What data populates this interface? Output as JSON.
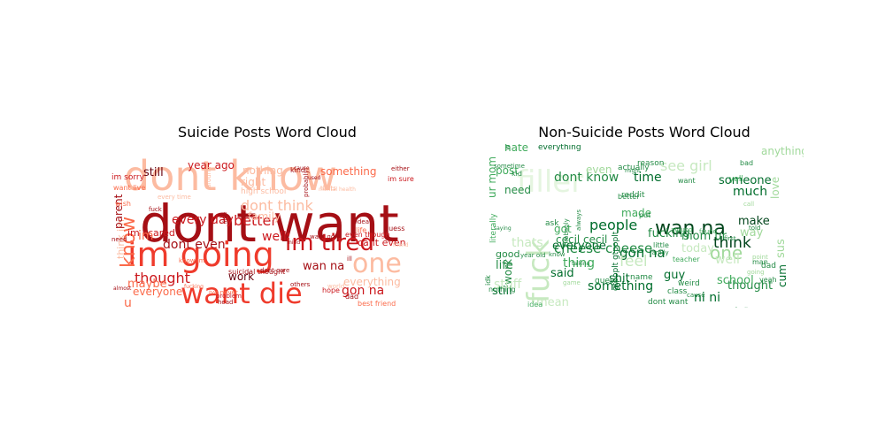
{
  "chart_data": [
    {
      "type": "wordcloud",
      "title": "Suicide Posts Word Cloud",
      "palette": "reds",
      "colors": [
        "#fee0d2",
        "#fcbba1",
        "#fc9272",
        "#fb6a4a",
        "#ef3b2c",
        "#cb181d",
        "#a50f15",
        "#67000d"
      ],
      "words": [
        {
          "text": "dont want",
          "weight": 1.0,
          "color": "#a50f15"
        },
        {
          "text": "dont know",
          "weight": 0.95,
          "color": "#fcbba1"
        },
        {
          "text": "im going",
          "weight": 0.7,
          "color": "#ef3b2c"
        },
        {
          "text": "want die",
          "weight": 0.65,
          "color": "#ef3b2c"
        },
        {
          "text": "im tired",
          "weight": 0.55,
          "color": "#cb181d"
        },
        {
          "text": "one",
          "weight": 0.5,
          "color": "#fcbba1"
        },
        {
          "text": "know",
          "weight": 0.45,
          "color": "#fb6a4a"
        },
        {
          "text": "dont think",
          "weight": 0.38,
          "color": "#fcbba1"
        },
        {
          "text": "thought",
          "weight": 0.33,
          "color": "#cb181d"
        },
        {
          "text": "every day",
          "weight": 0.3,
          "color": "#cb181d"
        },
        {
          "text": "better",
          "weight": 0.3,
          "color": "#cb181d"
        },
        {
          "text": "dont even",
          "weight": 0.28,
          "color": "#a50f15"
        },
        {
          "text": "wan na",
          "weight": 0.27,
          "color": "#a50f15"
        },
        {
          "text": "gon na",
          "weight": 0.27,
          "color": "#cb181d"
        },
        {
          "text": "well",
          "weight": 0.27,
          "color": "#cb181d"
        },
        {
          "text": "family",
          "weight": 0.26,
          "color": "#fcbba1"
        },
        {
          "text": "everything",
          "weight": 0.25,
          "color": "#fcbba1"
        },
        {
          "text": "nothing",
          "weight": 0.24,
          "color": "#fcbba1"
        },
        {
          "text": "something",
          "weight": 0.24,
          "color": "#fb6a4a"
        },
        {
          "text": "still",
          "weight": 0.24,
          "color": "#67000d"
        },
        {
          "text": "maybe",
          "weight": 0.22,
          "color": "#fb6a4a"
        },
        {
          "text": "right",
          "weight": 0.22,
          "color": "#fcbba1"
        },
        {
          "text": "work",
          "weight": 0.22,
          "color": "#67000d"
        },
        {
          "text": "year ago",
          "weight": 0.2,
          "color": "#cb181d"
        },
        {
          "text": "think im",
          "weight": 0.2,
          "color": "#fcbba1"
        },
        {
          "text": "parent",
          "weight": 0.2,
          "color": "#a50f15"
        },
        {
          "text": "im scared",
          "weight": 0.18,
          "color": "#cb181d"
        },
        {
          "text": "everyone",
          "weight": 0.18,
          "color": "#fb6a4a"
        },
        {
          "text": "cant even",
          "weight": 0.18,
          "color": "#cb181d"
        },
        {
          "text": "im sorry",
          "weight": 0.16,
          "color": "#cb181d"
        },
        {
          "text": "high school",
          "weight": 0.15,
          "color": "#fcbba1"
        },
        {
          "text": "suicidal thought",
          "weight": 0.14,
          "color": "#a50f15"
        },
        {
          "text": "best friend",
          "weight": 0.14,
          "color": "#fb6a4a"
        },
        {
          "text": "even though",
          "weight": 0.14,
          "color": "#cb181d"
        },
        {
          "text": "kind",
          "weight": 0.14,
          "color": "#a50f15"
        },
        {
          "text": "want live",
          "weight": 0.12,
          "color": "#fb6a4a"
        },
        {
          "text": "im sure",
          "weight": 0.12,
          "color": "#cb181d"
        },
        {
          "text": "fuck",
          "weight": 0.12,
          "color": "#a50f15"
        },
        {
          "text": "hope",
          "weight": 0.12,
          "color": "#cb181d"
        },
        {
          "text": "ive never",
          "weight": 0.12,
          "color": "#fb6a4a"
        },
        {
          "text": "want go",
          "weight": 0.12,
          "color": "#a50f15"
        },
        {
          "text": "problem",
          "weight": 0.1,
          "color": "#cb181d"
        },
        {
          "text": "dont care",
          "weight": 0.1,
          "color": "#a50f15"
        },
        {
          "text": "idea",
          "weight": 0.1,
          "color": "#a50f15"
        },
        {
          "text": "guess",
          "weight": 0.1,
          "color": "#a50f15"
        },
        {
          "text": "head",
          "weight": 0.1,
          "color": "#a50f15"
        },
        {
          "text": "others",
          "weight": 0.1,
          "color": "#a50f15"
        },
        {
          "text": "dad",
          "weight": 0.1,
          "color": "#a50f15"
        },
        {
          "text": "wish",
          "weight": 0.1,
          "color": "#fb6a4a"
        },
        {
          "text": "life",
          "weight": 0.1,
          "color": "#fb6a4a"
        },
        {
          "text": "probably",
          "weight": 0.09,
          "color": "#a50f15"
        },
        {
          "text": "either",
          "weight": 0.09,
          "color": "#a50f15"
        },
        {
          "text": "used",
          "weight": 0.09,
          "color": "#a50f15"
        },
        {
          "text": "cause",
          "weight": 0.09,
          "color": "#a50f15"
        },
        {
          "text": "thats",
          "weight": 0.09,
          "color": "#fcbba1"
        },
        {
          "text": "mind",
          "weight": 0.09,
          "color": "#a50f15"
        },
        {
          "text": "world",
          "weight": 0.09,
          "color": "#fcbba1"
        },
        {
          "text": "mental health",
          "weight": 0.08,
          "color": "#fcbba1"
        },
        {
          "text": "im",
          "weight": 0.2,
          "color": "#fb6a4a"
        },
        {
          "text": "u",
          "weight": 0.2,
          "color": "#fb6a4a"
        },
        {
          "text": "fucking",
          "weight": 0.08,
          "color": "#fb6a4a"
        },
        {
          "text": "almost",
          "weight": 0.08,
          "color": "#a50f15"
        },
        {
          "text": "every time",
          "weight": 0.08,
          "color": "#fcbba1"
        },
        {
          "text": "little",
          "weight": 0.08,
          "color": "#a50f15"
        },
        {
          "text": "ill",
          "weight": 0.08,
          "color": "#a50f15"
        },
        {
          "text": "know im",
          "weight": 0.08,
          "color": "#fb6a4a"
        },
        {
          "text": "around",
          "weight": 0.08,
          "color": "#fcbba1"
        },
        {
          "text": "friend",
          "weight": 0.08,
          "color": "#fcbba1"
        },
        {
          "text": "need",
          "weight": 0.08,
          "color": "#a50f15"
        }
      ]
    },
    {
      "type": "wordcloud",
      "title": "Non-Suicide Posts Word Cloud",
      "palette": "greens",
      "colors": [
        "#e5f5e0",
        "#c7e9c0",
        "#a1d99b",
        "#74c476",
        "#41ab5d",
        "#238b45",
        "#006d2c",
        "#00441b"
      ],
      "words": [
        {
          "text": "filler",
          "weight": 1.0,
          "color": "#e5f5e0"
        },
        {
          "text": "fuck",
          "weight": 0.6,
          "color": "#c7e9c0"
        },
        {
          "text": "wan na",
          "weight": 0.45,
          "color": "#00441b"
        },
        {
          "text": "people",
          "weight": 0.35,
          "color": "#006d2c"
        },
        {
          "text": "cheese cheese",
          "weight": 0.32,
          "color": "#238b45"
        },
        {
          "text": "one",
          "weight": 0.33,
          "color": "#a1d99b"
        },
        {
          "text": "think",
          "weight": 0.3,
          "color": "#00441b"
        },
        {
          "text": "dont know",
          "weight": 0.3,
          "color": "#238b45"
        },
        {
          "text": "gon na",
          "weight": 0.3,
          "color": "#006d2c"
        },
        {
          "text": "something",
          "weight": 0.28,
          "color": "#006d2c"
        },
        {
          "text": "feel",
          "weight": 0.28,
          "color": "#c7e9c0"
        },
        {
          "text": "see girl",
          "weight": 0.27,
          "color": "#c7e9c0"
        },
        {
          "text": "time",
          "weight": 0.26,
          "color": "#006d2c"
        },
        {
          "text": "much",
          "weight": 0.26,
          "color": "#006d2c"
        },
        {
          "text": "someone",
          "weight": 0.26,
          "color": "#006d2c"
        },
        {
          "text": "make",
          "weight": 0.26,
          "color": "#00441b"
        },
        {
          "text": "thing",
          "weight": 0.26,
          "color": "#41ab5d"
        },
        {
          "text": "everyone",
          "weight": 0.24,
          "color": "#006d2c"
        },
        {
          "text": "fucking",
          "weight": 0.24,
          "color": "#238b45"
        },
        {
          "text": "mom ur",
          "weight": 0.24,
          "color": "#238b45"
        },
        {
          "text": "guy",
          "weight": 0.24,
          "color": "#006d2c"
        },
        {
          "text": "said",
          "weight": 0.24,
          "color": "#006d2c"
        },
        {
          "text": "shit",
          "weight": 0.24,
          "color": "#006d2c"
        },
        {
          "text": "still",
          "weight": 0.24,
          "color": "#006d2c"
        },
        {
          "text": "life",
          "weight": 0.24,
          "color": "#238b45"
        },
        {
          "text": "good",
          "weight": 0.22,
          "color": "#238b45"
        },
        {
          "text": "work",
          "weight": 0.22,
          "color": "#238b45"
        },
        {
          "text": "need",
          "weight": 0.22,
          "color": "#238b45"
        },
        {
          "text": "post",
          "weight": 0.22,
          "color": "#41ab5d"
        },
        {
          "text": "hate",
          "weight": 0.22,
          "color": "#41ab5d"
        },
        {
          "text": "thought",
          "weight": 0.22,
          "color": "#238b45"
        },
        {
          "text": "school",
          "weight": 0.22,
          "color": "#41ab5d"
        },
        {
          "text": "ni ni",
          "weight": 0.22,
          "color": "#006d2c"
        },
        {
          "text": "cum",
          "weight": 0.2,
          "color": "#006d2c"
        },
        {
          "text": "sus",
          "weight": 0.2,
          "color": "#a1d99b"
        },
        {
          "text": "love",
          "weight": 0.2,
          "color": "#a1d99b"
        },
        {
          "text": "today",
          "weight": 0.2,
          "color": "#c7e9c0"
        },
        {
          "text": "anything",
          "weight": 0.2,
          "color": "#a1d99b"
        },
        {
          "text": "way",
          "weight": 0.2,
          "color": "#a1d99b"
        },
        {
          "text": "ur mom",
          "weight": 0.2,
          "color": "#41ab5d"
        },
        {
          "text": "made",
          "weight": 0.18,
          "color": "#41ab5d"
        },
        {
          "text": "cecil cecil",
          "weight": 0.16,
          "color": "#238b45"
        },
        {
          "text": "got",
          "weight": 0.18,
          "color": "#41ab5d"
        },
        {
          "text": "well",
          "weight": 0.18,
          "color": "#c7e9c0"
        },
        {
          "text": "mean",
          "weight": 0.16,
          "color": "#c7e9c0"
        },
        {
          "text": "even",
          "weight": 0.18,
          "color": "#a1d99b"
        },
        {
          "text": "everything",
          "weight": 0.12,
          "color": "#006d2c"
        },
        {
          "text": "actually",
          "weight": 0.12,
          "color": "#238b45"
        },
        {
          "text": "reason",
          "weight": 0.12,
          "color": "#238b45"
        },
        {
          "text": "yall",
          "weight": 0.12,
          "color": "#41ab5d"
        },
        {
          "text": "want",
          "weight": 0.12,
          "color": "#238b45"
        },
        {
          "text": "dont want",
          "weight": 0.1,
          "color": "#238b45"
        },
        {
          "text": "gtpoplt gtpoplt",
          "weight": 0.12,
          "color": "#006d2c"
        },
        {
          "text": "class",
          "weight": 0.12,
          "color": "#238b45"
        },
        {
          "text": "dad",
          "weight": 0.12,
          "color": "#238b45"
        },
        {
          "text": "weird",
          "weight": 0.12,
          "color": "#238b45"
        },
        {
          "text": "idea",
          "weight": 0.12,
          "color": "#41ab5d"
        },
        {
          "text": "name",
          "weight": 0.1,
          "color": "#238b45"
        },
        {
          "text": "better",
          "weight": 0.1,
          "color": "#238b45"
        },
        {
          "text": "ask",
          "weight": 0.1,
          "color": "#238b45"
        },
        {
          "text": "put",
          "weight": 0.1,
          "color": "#238b45"
        },
        {
          "text": "reddit",
          "weight": 0.1,
          "color": "#238b45"
        },
        {
          "text": "little",
          "weight": 0.1,
          "color": "#238b45"
        },
        {
          "text": "family",
          "weight": 0.09,
          "color": "#238b45"
        },
        {
          "text": "teacher",
          "weight": 0.09,
          "color": "#41ab5d"
        },
        {
          "text": "guess",
          "weight": 0.1,
          "color": "#238b45"
        },
        {
          "text": "first",
          "weight": 0.1,
          "color": "#238b45"
        },
        {
          "text": "told",
          "weight": 0.1,
          "color": "#238b45"
        },
        {
          "text": "man",
          "weight": 0.1,
          "color": "#238b45"
        },
        {
          "text": "feeling",
          "weight": 0.09,
          "color": "#238b45"
        },
        {
          "text": "cause",
          "weight": 0.1,
          "color": "#238b45"
        },
        {
          "text": "yeah",
          "weight": 0.09,
          "color": "#238b45"
        },
        {
          "text": "cant",
          "weight": 0.1,
          "color": "#238b45"
        },
        {
          "text": "literally",
          "weight": 0.12,
          "color": "#41ab5d"
        },
        {
          "text": "idk",
          "weight": 0.1,
          "color": "#238b45"
        },
        {
          "text": "nothing",
          "weight": 0.1,
          "color": "#238b45"
        },
        {
          "text": "probably",
          "weight": 0.09,
          "color": "#238b45"
        },
        {
          "text": "year old",
          "weight": 0.09,
          "color": "#238b45"
        },
        {
          "text": "always",
          "weight": 0.09,
          "color": "#238b45"
        },
        {
          "text": "call",
          "weight": 0.09,
          "color": "#a1d99b"
        },
        {
          "text": "kid",
          "weight": 0.1,
          "color": "#238b45"
        },
        {
          "text": "sometime",
          "weight": 0.09,
          "color": "#238b45"
        },
        {
          "text": "know",
          "weight": 0.1,
          "color": "#238b45"
        },
        {
          "text": "found",
          "weight": 0.09,
          "color": "#41ab5d"
        },
        {
          "text": "around",
          "weight": 0.09,
          "color": "#41ab5d"
        },
        {
          "text": "talking",
          "weight": 0.08,
          "color": "#238b45"
        },
        {
          "text": "saying",
          "weight": 0.08,
          "color": "#238b45"
        },
        {
          "text": "going",
          "weight": 0.09,
          "color": "#a1d99b"
        },
        {
          "text": "point",
          "weight": 0.09,
          "color": "#a1d99b"
        },
        {
          "text": "bad",
          "weight": 0.08,
          "color": "#238b45"
        },
        {
          "text": "thats",
          "weight": 0.12,
          "color": "#c7e9c0"
        },
        {
          "text": "might",
          "weight": 0.08,
          "color": "#238b45"
        },
        {
          "text": "wish",
          "weight": 0.08,
          "color": "#238b45"
        },
        {
          "text": "game",
          "weight": 0.08,
          "color": "#a1d99b"
        },
        {
          "text": "stuff",
          "weight": 0.1,
          "color": "#c7e9c0"
        }
      ]
    }
  ]
}
